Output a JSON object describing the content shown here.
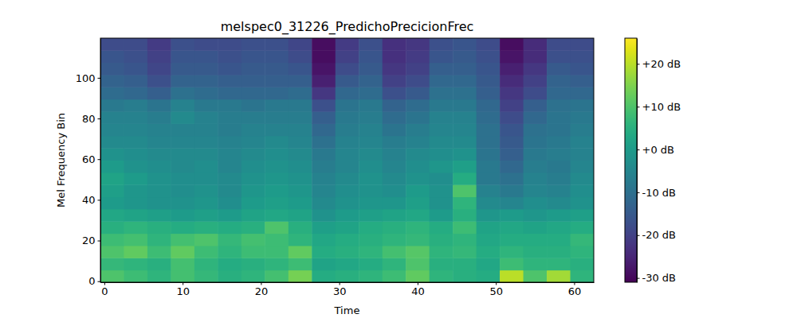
{
  "chart_data": {
    "type": "heatmap",
    "title": "melspec0_31226_PredichoPrecicionFrec",
    "x_label": "Time",
    "y_label": "Mel Frequency Bin",
    "xlim": [
      -0.5,
      62.5
    ],
    "ylim": [
      -0.5,
      119.5
    ],
    "xticks": [
      0,
      10,
      20,
      30,
      40,
      50,
      60
    ],
    "yticks": [
      0,
      20,
      40,
      60,
      80,
      100
    ],
    "color": "viridis",
    "x_edges": [
      -0.5,
      2.5,
      5.5,
      8.5,
      11.5,
      14.5,
      17.5,
      20.5,
      23.5,
      26.5,
      29.5,
      32.5,
      35.5,
      38.5,
      41.5,
      44.5,
      47.5,
      50.5,
      53.5,
      56.5,
      59.5,
      62.5
    ],
    "y_edges": [
      -0.5,
      5.5,
      11.5,
      17.5,
      23.5,
      29.5,
      35.5,
      41.5,
      47.5,
      53.5,
      59.5,
      65.5,
      71.5,
      77.5,
      83.5,
      89.5,
      95.5,
      101.5,
      107.5,
      113.5,
      119.5
    ],
    "cells": [
      [
        10,
        8,
        6,
        9,
        7,
        5,
        6,
        9,
        14,
        4,
        5,
        6,
        8,
        12,
        6,
        5,
        4,
        20,
        10,
        18,
        6
      ],
      [
        7,
        6,
        5,
        9,
        6,
        4,
        5,
        6,
        8,
        2,
        3,
        4,
        6,
        10,
        5,
        5,
        3,
        8,
        6,
        6,
        5
      ],
      [
        10,
        12,
        8,
        12,
        8,
        6,
        8,
        8,
        12,
        4,
        5,
        6,
        9,
        11,
        6,
        7,
        4,
        6,
        5,
        5,
        6
      ],
      [
        8,
        9,
        6,
        9,
        10,
        7,
        9,
        8,
        6,
        3,
        4,
        5,
        6,
        7,
        5,
        6,
        3,
        4,
        4,
        4,
        7
      ],
      [
        5,
        6,
        5,
        4,
        5,
        4,
        5,
        10,
        5,
        1,
        2,
        4,
        5,
        6,
        4,
        8,
        2,
        3,
        2,
        3,
        4
      ],
      [
        3,
        2,
        1,
        0,
        1,
        0,
        2,
        3,
        2,
        -2,
        0,
        1,
        2,
        3,
        0,
        5,
        -1,
        0,
        -1,
        0,
        1
      ],
      [
        0,
        -1,
        -2,
        -2,
        -1,
        -3,
        0,
        1,
        0,
        -4,
        -2,
        -1,
        -1,
        1,
        -2,
        6,
        -4,
        -5,
        -3,
        -4,
        -2
      ],
      [
        1,
        -1,
        -2,
        -3,
        -2,
        -4,
        -1,
        0,
        -1,
        -5,
        -3,
        -2,
        -3,
        0,
        -2,
        10,
        -6,
        -8,
        -5,
        -6,
        -3
      ],
      [
        2,
        0,
        -2,
        -3,
        -3,
        -4,
        -2,
        -1,
        -2,
        -6,
        -4,
        -2,
        -4,
        -2,
        -3,
        4,
        -8,
        -10,
        -6,
        -7,
        -4
      ],
      [
        0,
        -2,
        -3,
        -4,
        -3,
        -5,
        -3,
        -2,
        -3,
        -7,
        -5,
        -3,
        -5,
        -3,
        -1,
        1,
        -8,
        -12,
        -7,
        -8,
        -5
      ],
      [
        -2,
        -3,
        -4,
        -4,
        -4,
        -5,
        -4,
        -3,
        -4,
        -8,
        -5,
        -4,
        -6,
        -4,
        -3,
        -2,
        -9,
        -14,
        -8,
        -7,
        -6
      ],
      [
        -4,
        -4,
        -5,
        -5,
        -5,
        -6,
        -5,
        -4,
        -5,
        -10,
        -6,
        -5,
        -7,
        -6,
        -4,
        -4,
        -10,
        -15,
        -9,
        -8,
        -6
      ],
      [
        -5,
        -5,
        -6,
        -6,
        -6,
        -7,
        -6,
        -6,
        -6,
        -12,
        -7,
        -6,
        -9,
        -7,
        -5,
        -5,
        -10,
        -16,
        -10,
        -9,
        -7
      ],
      [
        -6,
        -6,
        -7,
        -4,
        -6,
        -7,
        -7,
        -7,
        -7,
        -14,
        -8,
        -7,
        -11,
        -9,
        -6,
        -6,
        -11,
        -18,
        -12,
        -9,
        -8
      ],
      [
        -8,
        -7,
        -9,
        -6,
        -8,
        -8,
        -9,
        -8,
        -8,
        -17,
        -9,
        -8,
        -13,
        -11,
        -8,
        -8,
        -12,
        -20,
        -14,
        -10,
        -9
      ],
      [
        -11,
        -12,
        -14,
        -10,
        -11,
        -12,
        -12,
        -12,
        -11,
        -22,
        -12,
        -11,
        -17,
        -15,
        -10,
        -10,
        -14,
        -22,
        -18,
        -12,
        -12
      ],
      [
        -13,
        -14,
        -17,
        -13,
        -13,
        -14,
        -14,
        -14,
        -14,
        -26,
        -15,
        -13,
        -20,
        -18,
        -12,
        -12,
        -15,
        -24,
        -20,
        -13,
        -14
      ],
      [
        -15,
        -16,
        -19,
        -15,
        -15,
        -16,
        -15,
        -15,
        -16,
        -28,
        -18,
        -15,
        -22,
        -20,
        -14,
        -14,
        -16,
        -26,
        -22,
        -15,
        -16
      ],
      [
        -16,
        -17,
        -20,
        -16,
        -16,
        -17,
        -16,
        -16,
        -18,
        -29,
        -20,
        -16,
        -23,
        -21,
        -16,
        -15,
        -17,
        -28,
        -24,
        -17,
        -17
      ],
      [
        -18,
        -18,
        -21,
        -17,
        -18,
        -18,
        -17,
        -17,
        -19,
        -29,
        -21,
        -17,
        -23,
        -22,
        -17,
        -16,
        -18,
        -29,
        -24,
        -18,
        -18
      ]
    ],
    "colorbar": {
      "range": [
        -31,
        26
      ],
      "ticks": [
        {
          "value": -30,
          "label": "-30 dB"
        },
        {
          "value": -20,
          "label": "-20 dB"
        },
        {
          "value": -10,
          "label": "-10 dB"
        },
        {
          "value": 0,
          "label": "+0 dB"
        },
        {
          "value": 10,
          "label": "+10 dB"
        },
        {
          "value": 20,
          "label": "+20 dB"
        }
      ]
    }
  }
}
